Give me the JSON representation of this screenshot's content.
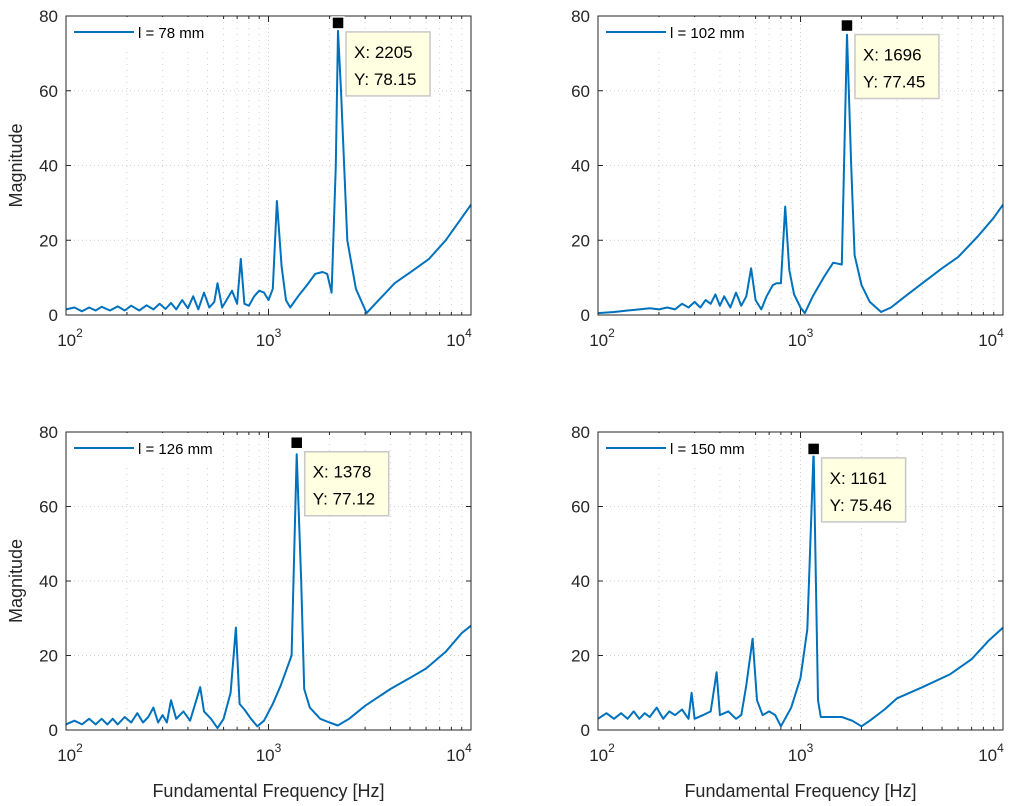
{
  "figure": {
    "xlabel": "Fundamental Frequency [Hz]",
    "ylabel": "Magnitude"
  },
  "colors": {
    "line": "#0072BD",
    "axes": "#262626",
    "grid": "#d0d0d0",
    "datatip_bg": "#FFFFE1",
    "datatip_border": "#c8c8c8"
  },
  "chart_data": [
    {
      "type": "line",
      "xscale": "log",
      "xlim": [
        100,
        10000
      ],
      "ylim": [
        0,
        80
      ],
      "xticks": [
        {
          "base": "10",
          "exp": "2"
        },
        {
          "base": "10",
          "exp": "3"
        },
        {
          "base": "10",
          "exp": "4"
        }
      ],
      "yticks": [
        "0",
        "20",
        "40",
        "60",
        "80"
      ],
      "ylabel": "Magnitude",
      "xlabel": "",
      "legend": {
        "label": "l = 78 mm",
        "position": "top-left"
      },
      "datatip": {
        "x_text": "X: 2205",
        "y_text": "Y: 78.15",
        "x": 2205,
        "y": 78.15
      },
      "series": [
        {
          "name": "l = 78 mm",
          "points": [
            [
              100,
              1.5
            ],
            [
              110,
              2
            ],
            [
              120,
              1
            ],
            [
              130,
              2
            ],
            [
              140,
              1.2
            ],
            [
              150,
              2.2
            ],
            [
              165,
              1.2
            ],
            [
              180,
              2.3
            ],
            [
              195,
              1.2
            ],
            [
              210,
              2.5
            ],
            [
              230,
              1.2
            ],
            [
              250,
              2.6
            ],
            [
              270,
              1.5
            ],
            [
              290,
              3
            ],
            [
              310,
              1.6
            ],
            [
              330,
              3.2
            ],
            [
              350,
              1.5
            ],
            [
              375,
              4
            ],
            [
              400,
              1.8
            ],
            [
              425,
              5
            ],
            [
              450,
              1.5
            ],
            [
              480,
              6
            ],
            [
              510,
              2
            ],
            [
              540,
              3.5
            ],
            [
              560,
              8.5
            ],
            [
              590,
              2
            ],
            [
              620,
              4
            ],
            [
              660,
              6.5
            ],
            [
              700,
              3
            ],
            [
              730,
              15
            ],
            [
              760,
              3
            ],
            [
              800,
              2.5
            ],
            [
              850,
              5
            ],
            [
              900,
              6.5
            ],
            [
              950,
              6
            ],
            [
              1000,
              4
            ],
            [
              1050,
              7
            ],
            [
              1100,
              30.5
            ],
            [
              1160,
              13
            ],
            [
              1220,
              4
            ],
            [
              1280,
              2
            ],
            [
              1400,
              5
            ],
            [
              1550,
              8
            ],
            [
              1700,
              11
            ],
            [
              1850,
              11.5
            ],
            [
              1950,
              11
            ],
            [
              2050,
              6
            ],
            [
              2150,
              40
            ],
            [
              2205,
              76
            ],
            [
              2280,
              60
            ],
            [
              2450,
              20
            ],
            [
              2700,
              7
            ],
            [
              3050,
              0.5
            ],
            [
              3500,
              4
            ],
            [
              4200,
              8.5
            ],
            [
              5200,
              12
            ],
            [
              6200,
              15
            ],
            [
              7500,
              20
            ],
            [
              9000,
              26
            ],
            [
              10000,
              29.5
            ]
          ]
        }
      ]
    },
    {
      "type": "line",
      "xscale": "log",
      "xlim": [
        100,
        10000
      ],
      "ylim": [
        0,
        80
      ],
      "xticks": [
        {
          "base": "10",
          "exp": "2"
        },
        {
          "base": "10",
          "exp": "3"
        },
        {
          "base": "10",
          "exp": "4"
        }
      ],
      "yticks": [
        "0",
        "20",
        "40",
        "60",
        "80"
      ],
      "ylabel": "",
      "xlabel": "",
      "legend": {
        "label": "l = 102 mm",
        "position": "top-left"
      },
      "datatip": {
        "x_text": "X: 1696",
        "y_text": "Y: 77.45",
        "x": 1696,
        "y": 77.45
      },
      "series": [
        {
          "name": "l = 102 mm",
          "points": [
            [
              100,
              0.5
            ],
            [
              120,
              0.8
            ],
            [
              140,
              1.2
            ],
            [
              160,
              1.5
            ],
            [
              180,
              1.8
            ],
            [
              200,
              1.5
            ],
            [
              220,
              2
            ],
            [
              240,
              1.5
            ],
            [
              260,
              3
            ],
            [
              280,
              2
            ],
            [
              300,
              3.5
            ],
            [
              320,
              2
            ],
            [
              340,
              4
            ],
            [
              360,
              3
            ],
            [
              380,
              5.5
            ],
            [
              400,
              2.5
            ],
            [
              420,
              5
            ],
            [
              450,
              2
            ],
            [
              480,
              6
            ],
            [
              510,
              2.5
            ],
            [
              540,
              5
            ],
            [
              570,
              12.5
            ],
            [
              600,
              4
            ],
            [
              640,
              1.5
            ],
            [
              680,
              5
            ],
            [
              730,
              8
            ],
            [
              760,
              8.5
            ],
            [
              800,
              8.5
            ],
            [
              840,
              29
            ],
            [
              880,
              12
            ],
            [
              930,
              5.5
            ],
            [
              1000,
              2
            ],
            [
              1050,
              0.5
            ],
            [
              1150,
              5
            ],
            [
              1300,
              10
            ],
            [
              1450,
              14
            ],
            [
              1600,
              13.5
            ],
            [
              1696,
              75
            ],
            [
              1780,
              40
            ],
            [
              1850,
              16
            ],
            [
              2000,
              8
            ],
            [
              2200,
              3.5
            ],
            [
              2500,
              0.8
            ],
            [
              2800,
              2
            ],
            [
              3200,
              4.5
            ],
            [
              4000,
              8.5
            ],
            [
              5000,
              12.5
            ],
            [
              6000,
              15.5
            ],
            [
              7500,
              21
            ],
            [
              9000,
              26
            ],
            [
              10000,
              29.5
            ]
          ]
        }
      ]
    },
    {
      "type": "line",
      "xscale": "log",
      "xlim": [
        100,
        10000
      ],
      "ylim": [
        0,
        80
      ],
      "xticks": [
        {
          "base": "10",
          "exp": "2"
        },
        {
          "base": "10",
          "exp": "3"
        },
        {
          "base": "10",
          "exp": "4"
        }
      ],
      "yticks": [
        "0",
        "20",
        "40",
        "60",
        "80"
      ],
      "ylabel": "Magnitude",
      "xlabel": "Fundamental Frequency [Hz]",
      "legend": {
        "label": "l = 126 mm",
        "position": "top-left"
      },
      "datatip": {
        "x_text": "X: 1378",
        "y_text": "Y: 77.12",
        "x": 1378,
        "y": 77.12
      },
      "series": [
        {
          "name": "l = 126 mm",
          "points": [
            [
              100,
              1.5
            ],
            [
              110,
              2.5
            ],
            [
              120,
              1.5
            ],
            [
              130,
              3
            ],
            [
              140,
              1.5
            ],
            [
              150,
              3
            ],
            [
              160,
              1.5
            ],
            [
              170,
              3
            ],
            [
              180,
              1.5
            ],
            [
              195,
              3.5
            ],
            [
              210,
              2
            ],
            [
              225,
              4.5
            ],
            [
              240,
              2
            ],
            [
              255,
              3.5
            ],
            [
              270,
              6
            ],
            [
              285,
              2
            ],
            [
              300,
              4
            ],
            [
              315,
              2
            ],
            [
              330,
              8
            ],
            [
              350,
              3
            ],
            [
              380,
              5
            ],
            [
              410,
              2.5
            ],
            [
              440,
              8
            ],
            [
              460,
              11.5
            ],
            [
              480,
              5
            ],
            [
              520,
              3
            ],
            [
              560,
              0.5
            ],
            [
              600,
              3
            ],
            [
              650,
              10
            ],
            [
              690,
              27.5
            ],
            [
              720,
              7
            ],
            [
              760,
              5.5
            ],
            [
              820,
              3
            ],
            [
              880,
              1
            ],
            [
              950,
              2.5
            ],
            [
              1050,
              7
            ],
            [
              1150,
              12
            ],
            [
              1300,
              20
            ],
            [
              1378,
              74
            ],
            [
              1450,
              40
            ],
            [
              1500,
              11
            ],
            [
              1600,
              6
            ],
            [
              1800,
              3
            ],
            [
              2000,
              2
            ],
            [
              2200,
              1.2
            ],
            [
              2500,
              3
            ],
            [
              3000,
              6.5
            ],
            [
              4000,
              11
            ],
            [
              5000,
              14
            ],
            [
              6000,
              16.5
            ],
            [
              7500,
              21
            ],
            [
              9000,
              26
            ],
            [
              10000,
              28
            ]
          ]
        }
      ]
    },
    {
      "type": "line",
      "xscale": "log",
      "xlim": [
        100,
        10000
      ],
      "ylim": [
        0,
        80
      ],
      "xticks": [
        {
          "base": "10",
          "exp": "2"
        },
        {
          "base": "10",
          "exp": "3"
        },
        {
          "base": "10",
          "exp": "4"
        }
      ],
      "yticks": [
        "0",
        "20",
        "40",
        "60",
        "80"
      ],
      "ylabel": "",
      "xlabel": "Fundamental Frequency [Hz]",
      "legend": {
        "label": "l = 150 mm",
        "position": "top-left"
      },
      "datatip": {
        "x_text": "X: 1161",
        "y_text": "Y: 75.46",
        "x": 1161,
        "y": 75.46
      },
      "series": [
        {
          "name": "l = 150 mm",
          "points": [
            [
              100,
              3
            ],
            [
              110,
              4.5
            ],
            [
              120,
              3
            ],
            [
              130,
              4.5
            ],
            [
              140,
              3
            ],
            [
              150,
              5
            ],
            [
              160,
              3
            ],
            [
              170,
              4.5
            ],
            [
              180,
              3.5
            ],
            [
              195,
              6
            ],
            [
              210,
              3
            ],
            [
              225,
              5
            ],
            [
              240,
              4
            ],
            [
              260,
              5.5
            ],
            [
              280,
              3
            ],
            [
              290,
              10
            ],
            [
              300,
              3
            ],
            [
              330,
              4
            ],
            [
              360,
              5
            ],
            [
              385,
              15.5
            ],
            [
              400,
              4
            ],
            [
              440,
              5
            ],
            [
              480,
              3
            ],
            [
              510,
              4
            ],
            [
              540,
              12
            ],
            [
              580,
              24.5
            ],
            [
              610,
              8
            ],
            [
              650,
              4
            ],
            [
              700,
              5
            ],
            [
              750,
              4
            ],
            [
              800,
              1
            ],
            [
              900,
              6
            ],
            [
              1000,
              14
            ],
            [
              1080,
              27
            ],
            [
              1161,
              75
            ],
            [
              1220,
              8
            ],
            [
              1260,
              3.5
            ],
            [
              1400,
              3.5
            ],
            [
              1600,
              3.5
            ],
            [
              1800,
              2.5
            ],
            [
              2000,
              1
            ],
            [
              2200,
              2.5
            ],
            [
              2600,
              5.5
            ],
            [
              3000,
              8.5
            ],
            [
              4000,
              11.5
            ],
            [
              5500,
              15
            ],
            [
              7000,
              19
            ],
            [
              8500,
              24
            ],
            [
              10000,
              27.5
            ]
          ]
        }
      ]
    }
  ]
}
